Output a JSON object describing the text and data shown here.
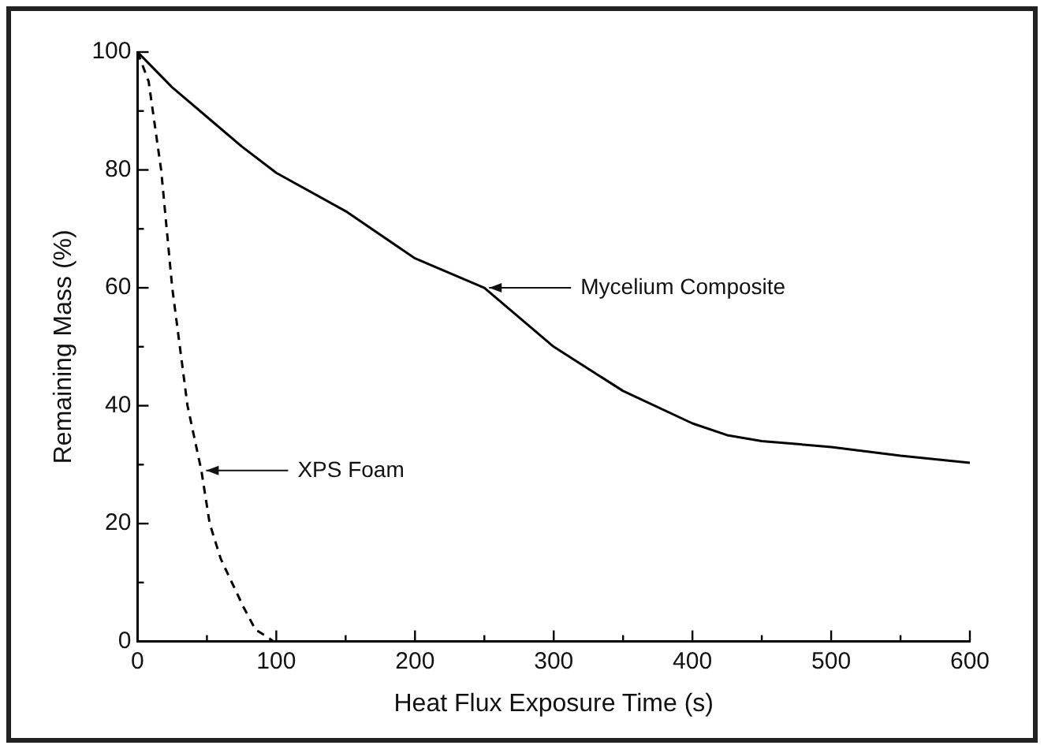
{
  "chart_data": {
    "type": "line",
    "xlabel": "Heat Flux Exposure Time (s)",
    "ylabel": "Remaining Mass (%)",
    "xlim": [
      0,
      600
    ],
    "xticks": [
      0,
      {
        "value": 50,
        "label": null
      },
      100,
      {
        "value": 150,
        "label": null
      },
      200,
      {
        "value": 250,
        "label": null
      },
      300,
      {
        "value": 350,
        "label": null
      },
      400,
      {
        "value": 450,
        "label": null
      },
      500,
      {
        "value": 550,
        "label": null
      },
      600
    ],
    "ylim": [
      0,
      100
    ],
    "yticks": [
      0,
      {
        "value": 10,
        "label": null
      },
      20,
      {
        "value": 30,
        "label": null
      },
      40,
      {
        "value": 50,
        "label": null
      },
      60,
      {
        "value": 70,
        "label": null
      },
      80,
      {
        "value": 90,
        "label": null
      },
      100
    ],
    "grid": false,
    "legend": false,
    "marker": "none",
    "series": [
      {
        "color": "#000000",
        "line_style": "solid",
        "x": [
          0,
          25,
          50,
          75,
          100,
          150,
          200,
          250,
          300,
          350,
          400,
          425,
          450,
          500,
          550,
          600
        ],
        "values": [
          100,
          94,
          89,
          84,
          79.5,
          73,
          65,
          60,
          50,
          42.5,
          37,
          35,
          34,
          33,
          31.5,
          30.3
        ]
      },
      {
        "color": "#000000",
        "line_style": "dashed",
        "x": [
          0,
          8,
          17,
          25,
          36,
          46,
          52,
          60,
          68,
          76,
          85,
          92,
          98
        ],
        "values": [
          100,
          95,
          80,
          60,
          40,
          29,
          20,
          14,
          10,
          6,
          2,
          1,
          0
        ]
      }
    ],
    "annotations": [
      {
        "text": "Mycelium Composite",
        "x": 250,
        "y": 60
      },
      {
        "text": "XPS Foam",
        "x": 46,
        "y": 29
      }
    ]
  }
}
